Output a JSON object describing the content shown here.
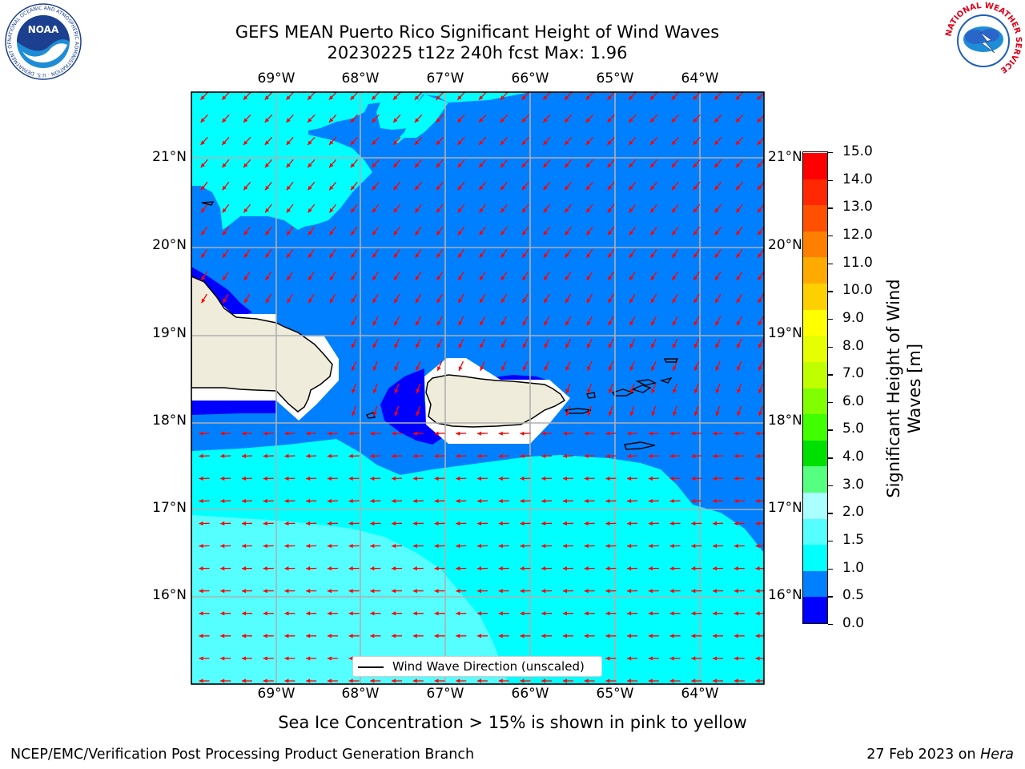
{
  "header": {
    "title_line1": "GEFS MEAN Puerto Rico Significant Height of Wind Waves",
    "title_line2": "20230225 t12z 240h fcst   Max: 1.96"
  },
  "logos": {
    "noaa_text": "NOAA",
    "noaa_ring_text": "NATIONAL OCEANIC AND ATMOSPHERIC ADMINISTRATION · U.S. DEPARTMENT OF COMMERCE",
    "nws_ring_text": "NATIONAL WEATHER SERVICE"
  },
  "map": {
    "lon_labels": [
      "69°W",
      "68°W",
      "67°W",
      "66°W",
      "65°W",
      "64°W"
    ],
    "lat_labels": [
      "21°N",
      "20°N",
      "19°N",
      "18°N",
      "17°N",
      "16°N"
    ],
    "legend_label": "Wind Wave Direction (unscaled)",
    "colors": {
      "land": "#efecdc",
      "band_0_0.5": "#0000ff",
      "band_0.5_1.0": "#0080ff",
      "band_1.0_1.5": "#00ffff",
      "band_1.5_2.0": "#55ffff",
      "arrow": "#ff0000"
    }
  },
  "colorbar": {
    "label": "Significant Height of Wind Waves [m]",
    "ticks": [
      "15.0",
      "14.0",
      "13.0",
      "12.0",
      "11.0",
      "10.0",
      "9.0",
      "8.0",
      "7.0",
      "6.0",
      "5.0",
      "4.0",
      "3.0",
      "2.0",
      "1.5",
      "1.0",
      "0.5",
      "0.0"
    ],
    "colors_bottom_to_top": [
      "#0000ff",
      "#0080ff",
      "#00ffff",
      "#55ffff",
      "#aaffff",
      "#55ff80",
      "#00e000",
      "#40ff00",
      "#80ff00",
      "#c0ff00",
      "#e6ff00",
      "#ffff00",
      "#ffd000",
      "#ffaa00",
      "#ff8000",
      "#ff5000",
      "#ff2800",
      "#ff0000"
    ]
  },
  "notes": {
    "sea_ice": "Sea Ice Concentration > 15% is shown in pink to yellow",
    "footer_left": "NCEP/EMC/Verification Post Processing Product Generation Branch",
    "footer_right_date": "27 Feb 2023 on ",
    "footer_right_host": "Hera"
  }
}
